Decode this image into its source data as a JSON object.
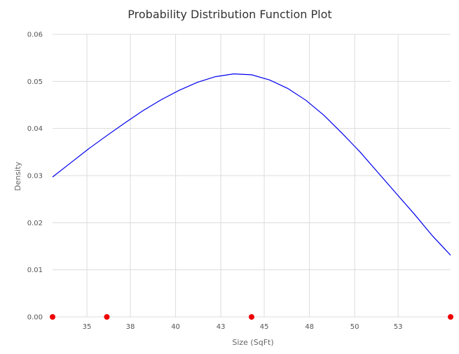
{
  "chart_data": {
    "type": "line",
    "title": "Probability Distribution Function Plot",
    "xlabel": "Size (SqFt)",
    "ylabel": "Density",
    "xlim": [
      33,
      55
    ],
    "ylim": [
      0,
      0.06
    ],
    "x_ticks": [
      {
        "value": 34.9,
        "label": "35"
      },
      {
        "value": 37.3,
        "label": "38"
      },
      {
        "value": 39.8,
        "label": "40"
      },
      {
        "value": 42.3,
        "label": "43"
      },
      {
        "value": 44.7,
        "label": "45"
      },
      {
        "value": 47.2,
        "label": "48"
      },
      {
        "value": 49.7,
        "label": "50"
      },
      {
        "value": 52.1,
        "label": "53"
      }
    ],
    "y_ticks": [
      "0.00",
      "0.01",
      "0.02",
      "0.03",
      "0.04",
      "0.05",
      "0.06"
    ],
    "grid": true,
    "series": [
      {
        "type": "line",
        "color": "#0000ee",
        "x": [
          33.0,
          34.0,
          35.0,
          36.0,
          37.0,
          38.0,
          39.0,
          40.0,
          41.0,
          42.0,
          43.0,
          44.0,
          45.0,
          46.0,
          47.0,
          48.0,
          49.0,
          50.0,
          51.0,
          52.0,
          53.0,
          54.0,
          55.0
        ],
        "y": [
          0.0297,
          0.0327,
          0.0357,
          0.0385,
          0.0412,
          0.0438,
          0.0461,
          0.0481,
          0.0498,
          0.051,
          0.0516,
          0.0514,
          0.0503,
          0.0485,
          0.046,
          0.0428,
          0.039,
          0.035,
          0.0306,
          0.0262,
          0.0218,
          0.0172,
          0.0131
        ]
      },
      {
        "type": "scatter",
        "color": "#ee0000",
        "x": [
          33.0,
          36.0,
          44.0,
          55.0
        ],
        "y": [
          0,
          0,
          0,
          0
        ]
      }
    ]
  }
}
